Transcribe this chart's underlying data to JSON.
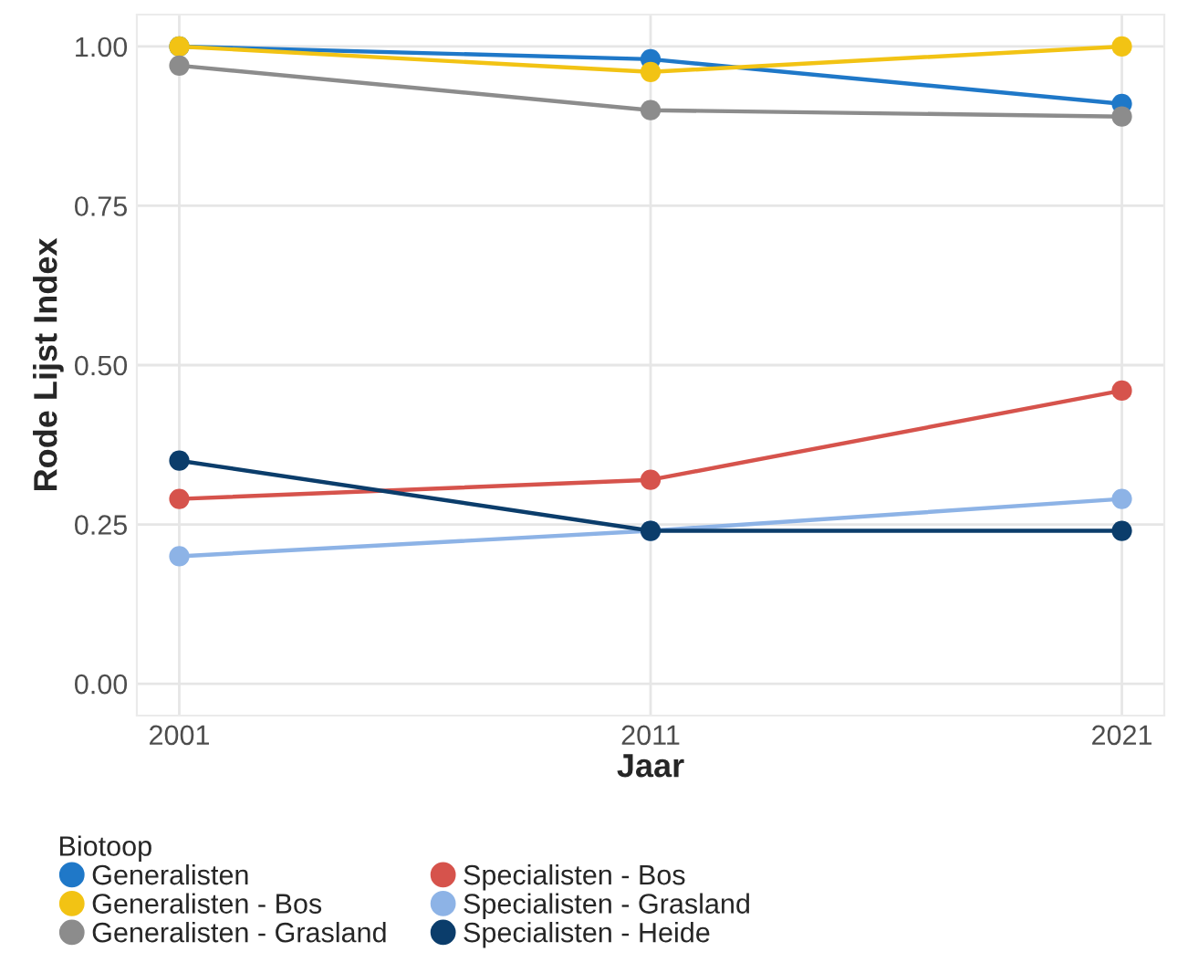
{
  "chart_data": {
    "type": "line",
    "xlabel": "Jaar",
    "ylabel": "Rode Lijst Index",
    "legend_title": "Biotoop",
    "x": [
      2001,
      2011,
      2021
    ],
    "series": [
      {
        "name": "Generalisten",
        "color": "#1f78c8",
        "values": [
          1.0,
          0.98,
          0.91
        ]
      },
      {
        "name": "Generalisten - Bos",
        "color": "#f2c314",
        "values": [
          1.0,
          0.96,
          1.0
        ]
      },
      {
        "name": "Generalisten - Grasland",
        "color": "#8c8c8c",
        "values": [
          0.97,
          0.9,
          0.89
        ]
      },
      {
        "name": "Specialisten - Bos",
        "color": "#d6534c",
        "values": [
          0.29,
          0.32,
          0.46
        ]
      },
      {
        "name": "Specialisten - Grasland",
        "color": "#8db3e6",
        "values": [
          0.2,
          0.24,
          0.29
        ]
      },
      {
        "name": "Specialisten - Heide",
        "color": "#0b3d6b",
        "values": [
          0.35,
          0.24,
          0.24
        ]
      }
    ],
    "xlim": [
      2000.1,
      2021.9
    ],
    "ylim": [
      -0.05,
      1.05
    ],
    "xticks": [
      2001,
      2011,
      2021
    ],
    "yticks": [
      {
        "value": 0,
        "label": "0.00"
      },
      {
        "value": 0.25,
        "label": "0.25"
      },
      {
        "value": 0.5,
        "label": "0.50"
      },
      {
        "value": 0.75,
        "label": "0.75"
      },
      {
        "value": 1,
        "label": "1.00"
      }
    ],
    "grid": true,
    "legend": "bottom",
    "marker": "circle",
    "line_style": "solid"
  }
}
